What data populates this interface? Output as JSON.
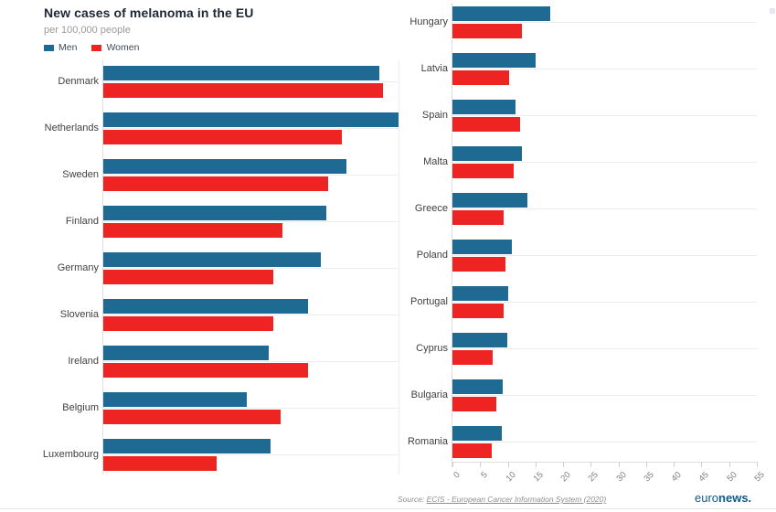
{
  "header": {
    "title": "New cases of melanoma in the EU",
    "subtitle": "per 100,000 people",
    "legend": [
      {
        "label": "Men",
        "color": "#1f6a92"
      },
      {
        "label": "Women",
        "color": "#ee2423"
      }
    ]
  },
  "chart_data": {
    "type": "bar",
    "orientation": "horizontal",
    "title": "New cases of melanoma in the EU",
    "units_label": "per 100,000 people",
    "xlim": [
      0,
      55
    ],
    "x_ticks": [
      0,
      5,
      10,
      15,
      20,
      25,
      30,
      35,
      40,
      45,
      50,
      55
    ],
    "grid": "row gridlines on, x axis shown under right panel only",
    "legend_position": "top-left",
    "colors": {
      "Men": "#1f6a92",
      "Women": "#ee2423"
    },
    "panels": [
      {
        "categories": [
          "Denmark",
          "Netherlands",
          "Sweden",
          "Finland",
          "Germany",
          "Slovenia",
          "Ireland",
          "Belgium",
          "Luxembourg"
        ],
        "series": [
          {
            "name": "Men",
            "values": [
              51.5,
              55.0,
              45.3,
              41.5,
              40.5,
              38.1,
              30.9,
              26.8,
              31.1
            ]
          },
          {
            "name": "Women",
            "values": [
              52.1,
              44.4,
              41.9,
              33.4,
              31.7,
              31.7,
              38.2,
              33.1,
              21.1
            ]
          }
        ]
      },
      {
        "categories": [
          "Hungary",
          "Latvia",
          "Spain",
          "Malta",
          "Greece",
          "Poland",
          "Portugal",
          "Cyprus",
          "Bulgaria",
          "Romania"
        ],
        "series": [
          {
            "name": "Men",
            "values": [
              17.7,
              15.0,
              11.4,
              12.5,
              13.6,
              10.7,
              10.1,
              9.9,
              9.1,
              8.9
            ]
          },
          {
            "name": "Women",
            "values": [
              12.5,
              10.2,
              12.2,
              11.0,
              9.3,
              9.6,
              9.3,
              7.3,
              8.0,
              7.1
            ]
          }
        ]
      }
    ]
  },
  "footer": {
    "source_prefix": "Source:",
    "source_link": "ECIS - European Cancer Information System (2020)",
    "logo_first": "euro",
    "logo_second": "news."
  }
}
